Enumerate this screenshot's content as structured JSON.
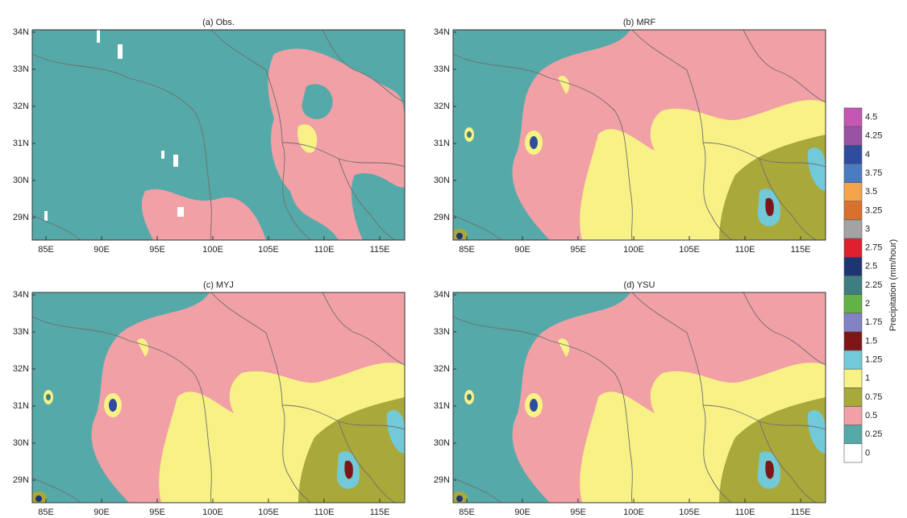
{
  "panels": [
    {
      "title": "(a) Obs."
    },
    {
      "title": "(b) MRF"
    },
    {
      "title": "(c) MYJ"
    },
    {
      "title": "(d) YSU"
    }
  ],
  "lat_labels": [
    "34N",
    "33N",
    "32N",
    "31N",
    "30N",
    "29N"
  ],
  "lon_labels": [
    "85E",
    "90E",
    "95E",
    "100E",
    "105E",
    "110E",
    "115E"
  ],
  "colorbar": {
    "title": "Precipitation (mm/hour)",
    "bins": [
      {
        "label": "4.5",
        "color": "#c456b4"
      },
      {
        "label": "4.25",
        "color": "#9a52a2"
      },
      {
        "label": "4",
        "color": "#2f4c9f"
      },
      {
        "label": "3.75",
        "color": "#4a7cc2"
      },
      {
        "label": "3.5",
        "color": "#f4a448"
      },
      {
        "label": "3.25",
        "color": "#d8702e"
      },
      {
        "label": "3",
        "color": "#a3a3a3"
      },
      {
        "label": "2.75",
        "color": "#e0202e"
      },
      {
        "label": "2.5",
        "color": "#1f3472"
      },
      {
        "label": "2.25",
        "color": "#3e7e80"
      },
      {
        "label": "2",
        "color": "#62b246"
      },
      {
        "label": "1.75",
        "color": "#8282c4"
      },
      {
        "label": "1.5",
        "color": "#7e1618"
      },
      {
        "label": "1.25",
        "color": "#72cad8"
      },
      {
        "label": "1",
        "color": "#f8f286"
      },
      {
        "label": "0.75",
        "color": "#a9a83a"
      },
      {
        "label": "0.5",
        "color": "#f1a0a6"
      },
      {
        "label": "0.25",
        "color": "#56a9a9"
      },
      {
        "label": "0",
        "color": "#ffffff"
      }
    ]
  }
}
